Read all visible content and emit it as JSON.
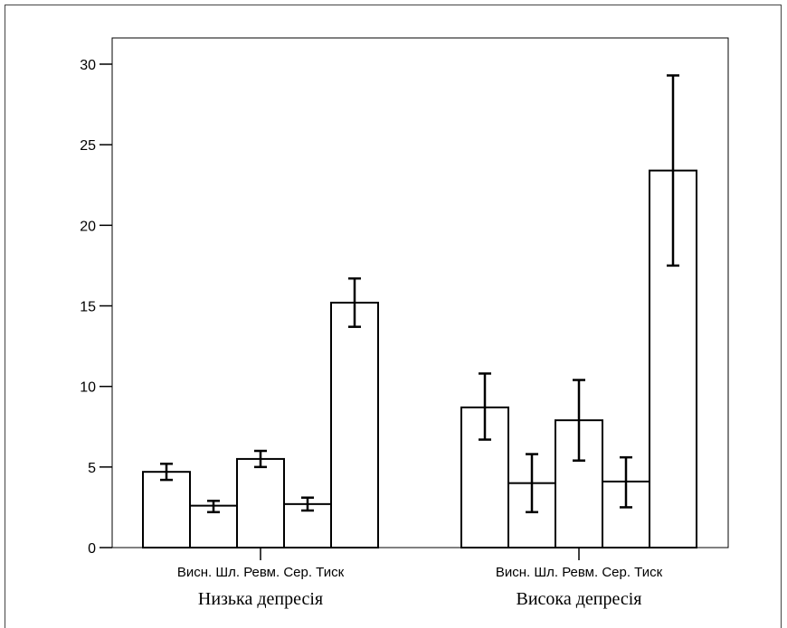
{
  "chart_data": {
    "type": "bar",
    "ylim": [
      0,
      30
    ],
    "yticks": [
      0,
      5,
      10,
      15,
      20,
      25,
      30
    ],
    "grid": false,
    "groups": [
      {
        "label": "Низька депресія",
        "categories_text": "Висн. Шл. Ревм. Сер. Тиск",
        "bars": [
          {
            "value": 4.7,
            "err_low": 4.2,
            "err_high": 5.2
          },
          {
            "value": 2.6,
            "err_low": 2.2,
            "err_high": 2.9
          },
          {
            "value": 5.5,
            "err_low": 5.0,
            "err_high": 6.0
          },
          {
            "value": 2.7,
            "err_low": 2.3,
            "err_high": 3.1
          },
          {
            "value": 15.2,
            "err_low": 13.7,
            "err_high": 16.7
          }
        ]
      },
      {
        "label": "Висока депресія",
        "categories_text": "Висн. Шл. Ревм. Сер. Тиск",
        "bars": [
          {
            "value": 8.7,
            "err_low": 6.7,
            "err_high": 10.8
          },
          {
            "value": 4.0,
            "err_low": 2.2,
            "err_high": 5.8
          },
          {
            "value": 7.9,
            "err_low": 5.4,
            "err_high": 10.4
          },
          {
            "value": 4.1,
            "err_low": 2.5,
            "err_high": 5.6
          },
          {
            "value": 23.4,
            "err_low": 17.5,
            "err_high": 29.3
          }
        ]
      }
    ]
  }
}
